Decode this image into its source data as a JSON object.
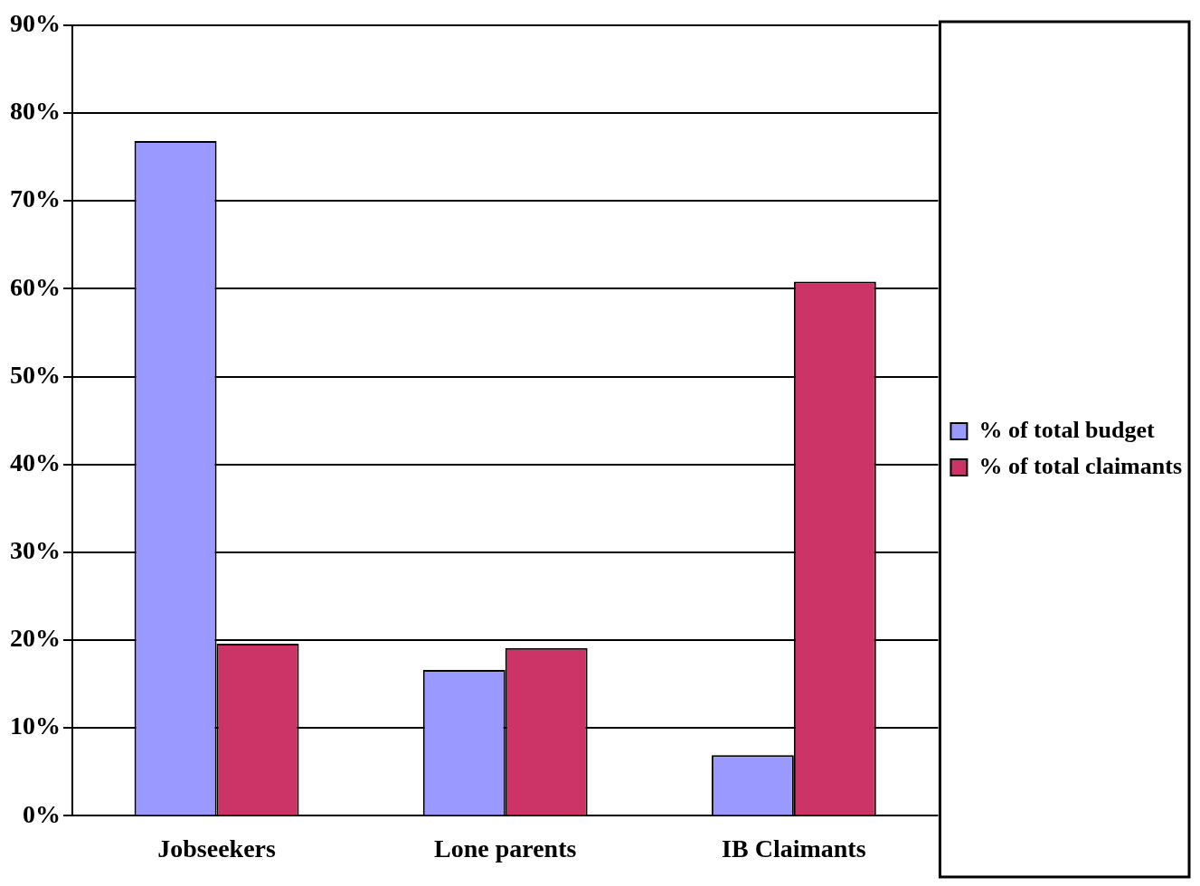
{
  "chart_data": {
    "type": "bar",
    "categories": [
      "Jobseekers",
      "Lone parents",
      "IB Claimants"
    ],
    "series": [
      {
        "name": "% of total budget",
        "color": "#9999ff",
        "values": [
          76.8,
          16.6,
          6.9
        ]
      },
      {
        "name": "% of total claimants",
        "color": "#cc3366",
        "values": [
          19.6,
          19.1,
          60.8
        ]
      }
    ],
    "ylim": [
      0,
      90
    ],
    "yticks": [
      {
        "value": 0,
        "label": "0%"
      },
      {
        "value": 10,
        "label": "10%"
      },
      {
        "value": 20,
        "label": "20%"
      },
      {
        "value": 30,
        "label": "30%"
      },
      {
        "value": 40,
        "label": "40%"
      },
      {
        "value": 50,
        "label": "50%"
      },
      {
        "value": 60,
        "label": "60%"
      },
      {
        "value": 70,
        "label": "70%"
      },
      {
        "value": 80,
        "label": "80%"
      },
      {
        "value": 90,
        "label": "90%"
      }
    ],
    "grid": "y",
    "legend": "right"
  }
}
